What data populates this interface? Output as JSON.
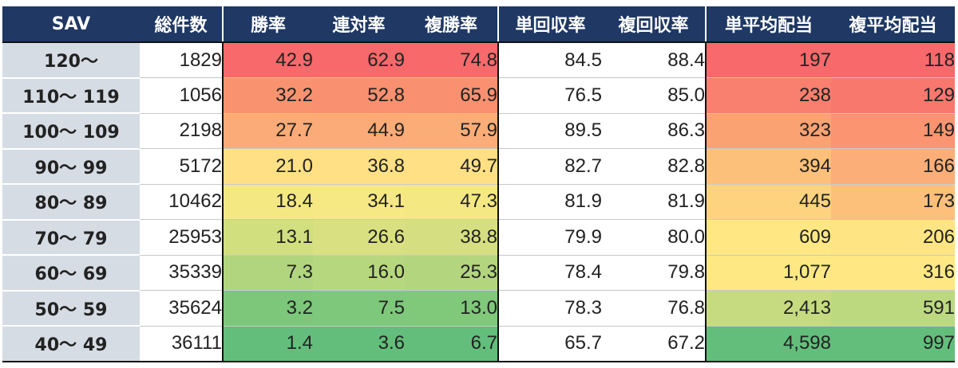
{
  "table": {
    "headers": [
      "SAV",
      "総件数",
      "勝率",
      "連対率",
      "複勝率",
      "単回収率",
      "複回収率",
      "単平均配当",
      "複平均配当"
    ],
    "rows": [
      {
        "sav": "120～",
        "count": "1829",
        "win": "42.9",
        "place2": "62.9",
        "show": "74.8",
        "win_roi": "84.5",
        "show_roi": "88.4",
        "win_avg": "197",
        "show_avg": "118"
      },
      {
        "sav": "110～ 119",
        "count": "1056",
        "win": "32.2",
        "place2": "52.8",
        "show": "65.9",
        "win_roi": "76.5",
        "show_roi": "85.0",
        "win_avg": "238",
        "show_avg": "129"
      },
      {
        "sav": "100～ 109",
        "count": "2198",
        "win": "27.7",
        "place2": "44.9",
        "show": "57.9",
        "win_roi": "89.5",
        "show_roi": "86.3",
        "win_avg": "323",
        "show_avg": "149"
      },
      {
        "sav": "90～ 99",
        "count": "5172",
        "win": "21.0",
        "place2": "36.8",
        "show": "49.7",
        "win_roi": "82.7",
        "show_roi": "82.8",
        "win_avg": "394",
        "show_avg": "166"
      },
      {
        "sav": "80～ 89",
        "count": "10462",
        "win": "18.4",
        "place2": "34.1",
        "show": "47.3",
        "win_roi": "81.9",
        "show_roi": "81.9",
        "win_avg": "445",
        "show_avg": "173"
      },
      {
        "sav": "70～ 79",
        "count": "25953",
        "win": "13.1",
        "place2": "26.6",
        "show": "38.8",
        "win_roi": "79.9",
        "show_roi": "80.0",
        "win_avg": "609",
        "show_avg": "206"
      },
      {
        "sav": "60～ 69",
        "count": "35339",
        "win": "7.3",
        "place2": "16.0",
        "show": "25.3",
        "win_roi": "78.4",
        "show_roi": "79.8",
        "win_avg": "1,077",
        "show_avg": "316"
      },
      {
        "sav": "50～ 59",
        "count": "35624",
        "win": "3.2",
        "place2": "7.5",
        "show": "13.0",
        "win_roi": "78.3",
        "show_roi": "76.8",
        "win_avg": "2,413",
        "show_avg": "591"
      },
      {
        "sav": "40～ 49",
        "count": "36111",
        "win": "1.4",
        "place2": "3.6",
        "show": "6.7",
        "win_roi": "65.7",
        "show_roi": "67.2",
        "win_avg": "4,598",
        "show_avg": "997"
      }
    ],
    "heatmap_colors": {
      "win": [
        "#f8696b",
        "#f9936f",
        "#fbab77",
        "#ffe084",
        "#f4e883",
        "#d2df7f",
        "#b1d57e",
        "#7dc77a",
        "#63be7b"
      ],
      "place2": [
        "#f8696b",
        "#f9906f",
        "#fbab77",
        "#ffe084",
        "#f6e883",
        "#d8e081",
        "#b7d77e",
        "#7ec87b",
        "#63be7b"
      ],
      "show": [
        "#f8696b",
        "#f99070",
        "#fbad78",
        "#ffe084",
        "#f4e883",
        "#d5df81",
        "#b3d57e",
        "#80c87a",
        "#63be7b"
      ],
      "win_avg": [
        "#f8696b",
        "#f97f6f",
        "#fba273",
        "#fdc07a",
        "#fed37f",
        "#ffe784",
        "#fde883",
        "#c6da80",
        "#63be7b"
      ],
      "show_avg": [
        "#f8696b",
        "#f9786e",
        "#fa9471",
        "#fbae77",
        "#fdc07b",
        "#ffe483",
        "#ffe884",
        "#bcd980",
        "#63be7b"
      ]
    }
  }
}
